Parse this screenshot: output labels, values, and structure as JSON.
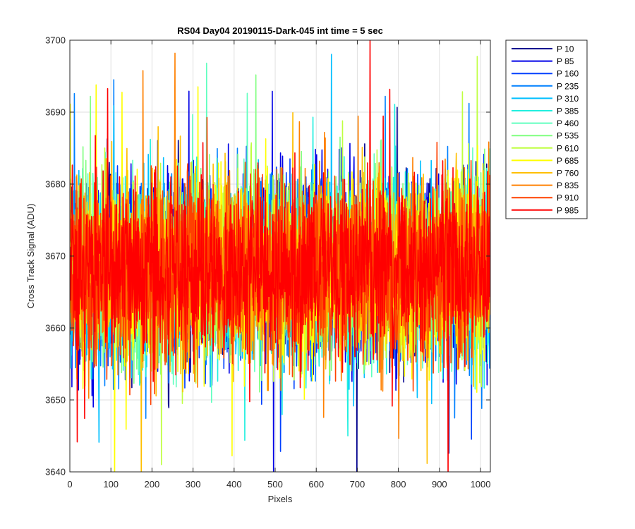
{
  "chart_data": {
    "type": "line",
    "title": "RS04 Day04 20190115-Dark-045 int time = 5 sec",
    "xlabel": "Pixels",
    "ylabel": "Cross Track Signal (ADU)",
    "xlim": [
      0,
      1024
    ],
    "ylim": [
      3640,
      3700
    ],
    "xticks": [
      0,
      100,
      200,
      300,
      400,
      500,
      600,
      700,
      800,
      900,
      1000
    ],
    "yticks": [
      3640,
      3650,
      3660,
      3670,
      3680,
      3690,
      3700
    ],
    "grid": true,
    "legend_position": "outside-right-top",
    "signal_mean": 3668,
    "signal_spread": 6,
    "x_count": 1024,
    "series": [
      {
        "name": "P 10",
        "color": "#00008f"
      },
      {
        "name": "P 85",
        "color": "#0000e6"
      },
      {
        "name": "P 160",
        "color": "#0040ff"
      },
      {
        "name": "P 235",
        "color": "#0080ff"
      },
      {
        "name": "P 310",
        "color": "#00bfff"
      },
      {
        "name": "P 385",
        "color": "#20efdf"
      },
      {
        "name": "P 460",
        "color": "#60ffbf"
      },
      {
        "name": "P 535",
        "color": "#80ff80"
      },
      {
        "name": "P 610",
        "color": "#bfff40"
      },
      {
        "name": "P 685",
        "color": "#ffff00"
      },
      {
        "name": "P 760",
        "color": "#ffbf00"
      },
      {
        "name": "P 835",
        "color": "#ff8000"
      },
      {
        "name": "P 910",
        "color": "#ff4000"
      },
      {
        "name": "P 985",
        "color": "#ff0000"
      }
    ]
  }
}
